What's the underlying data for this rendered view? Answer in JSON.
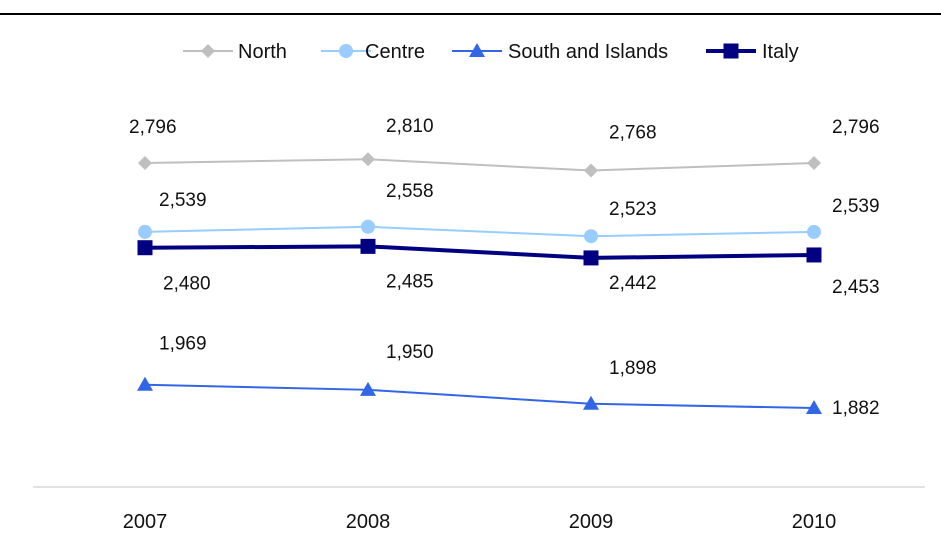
{
  "chart_data": {
    "type": "line",
    "categories": [
      "2007",
      "2008",
      "2009",
      "2010"
    ],
    "series": [
      {
        "name": "North",
        "values": [
          2796,
          2810,
          2768,
          2796
        ],
        "labels": [
          "2,796",
          "2,810",
          "2,768",
          "2,796"
        ],
        "color": "#BFBFBF",
        "marker": "diamond"
      },
      {
        "name": "Centre",
        "values": [
          2539,
          2558,
          2523,
          2539
        ],
        "labels": [
          "2,539",
          "2,558",
          "2,523",
          "2,539"
        ],
        "color": "#99CCFF",
        "marker": "circle"
      },
      {
        "name": "South and Islands",
        "values": [
          1969,
          1950,
          1898,
          1882
        ],
        "labels": [
          "1,969",
          "1,950",
          "1,898",
          "1,882"
        ],
        "color": "#3366E6",
        "marker": "triangle"
      },
      {
        "name": "Italy",
        "values": [
          2480,
          2485,
          2442,
          2453
        ],
        "labels": [
          "2,480",
          "2,485",
          "2,442",
          "2,453"
        ],
        "color": "#000080",
        "marker": "square"
      }
    ],
    "legend_position": "top",
    "grid": false
  }
}
